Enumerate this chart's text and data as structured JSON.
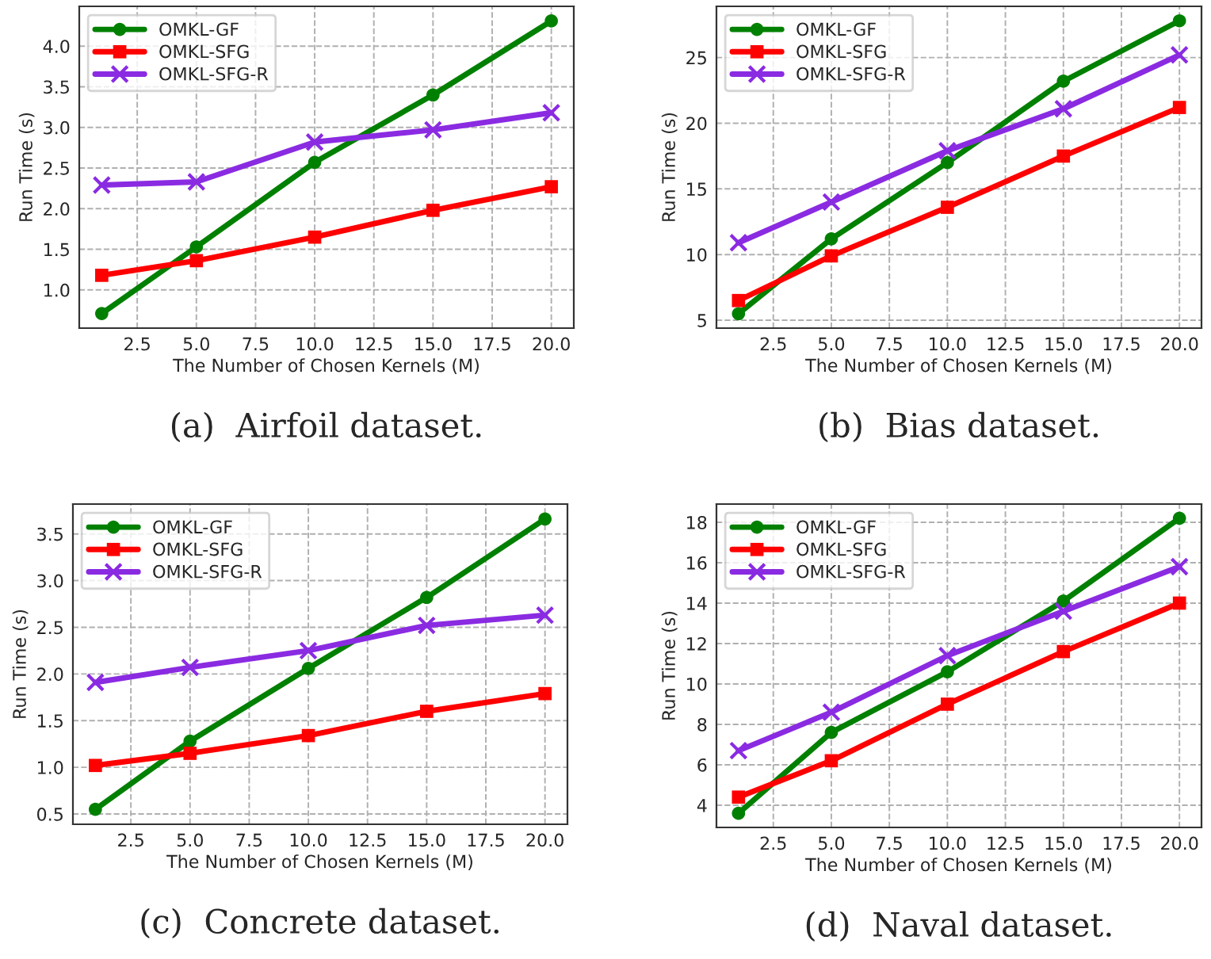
{
  "chart_data": [
    {
      "type": "line",
      "xlabel": "The Number of Chosen Kernels (M)",
      "ylabel": "Run Time (s)",
      "annotations": [
        "(a)  Airfoil dataset."
      ],
      "x": [
        1,
        5,
        10,
        15,
        20
      ],
      "xlim": [
        0.05,
        20.95
      ],
      "xticks": [
        {
          "value": 2.5,
          "label": "2.5"
        },
        {
          "value": 5,
          "label": "5.0"
        },
        {
          "value": 7.5,
          "label": "7.5"
        },
        {
          "value": 10,
          "label": "10.0"
        },
        {
          "value": 12.5,
          "label": "12.5"
        },
        {
          "value": 15,
          "label": "15.0"
        },
        {
          "value": 17.5,
          "label": "17.5"
        },
        {
          "value": 20,
          "label": "20.0"
        }
      ],
      "ylim": [
        0.53,
        4.49
      ],
      "yticks": [
        {
          "value": 1,
          "label": "1.0"
        },
        {
          "value": 1.5,
          "label": "1.5"
        },
        {
          "value": 2,
          "label": "2.0"
        },
        {
          "value": 2.5,
          "label": "2.5"
        },
        {
          "value": 3,
          "label": "3.0"
        },
        {
          "value": 3.5,
          "label": "3.5"
        },
        {
          "value": 4,
          "label": "4.0"
        }
      ],
      "grid": true,
      "legend": "top left",
      "series": [
        {
          "name": "OMKL-GF",
          "color": "#008000",
          "marker": "circle",
          "values": [
            0.71,
            1.53,
            2.57,
            3.4,
            4.31
          ]
        },
        {
          "name": "OMKL-SFG",
          "color": "#ff0000",
          "marker": "square",
          "values": [
            1.18,
            1.36,
            1.65,
            1.98,
            2.27
          ]
        },
        {
          "name": "OMKL-SFG-R",
          "color": "#8a2be2",
          "marker": "cross",
          "values": [
            2.29,
            2.33,
            2.82,
            2.97,
            3.18
          ]
        }
      ]
    },
    {
      "type": "line",
      "xlabel": "The Number of Chosen Kernels (M)",
      "ylabel": "Run Time (s)",
      "annotations": [
        "(b)  Bias dataset."
      ],
      "x": [
        1,
        5,
        10,
        15,
        20
      ],
      "xlim": [
        0.05,
        20.95
      ],
      "xticks": [
        {
          "value": 2.5,
          "label": "2.5"
        },
        {
          "value": 5,
          "label": "5.0"
        },
        {
          "value": 7.5,
          "label": "7.5"
        },
        {
          "value": 10,
          "label": "10.0"
        },
        {
          "value": 12.5,
          "label": "12.5"
        },
        {
          "value": 15,
          "label": "15.0"
        },
        {
          "value": 17.5,
          "label": "17.5"
        },
        {
          "value": 20,
          "label": "20.0"
        }
      ],
      "ylim": [
        4.4,
        28.9
      ],
      "yticks": [
        5,
        10,
        15,
        20,
        25
      ],
      "grid": true,
      "legend": "top left",
      "series": [
        {
          "name": "OMKL-GF",
          "color": "#008000",
          "marker": "circle",
          "values": [
            5.5,
            11.2,
            17.0,
            23.2,
            27.8
          ]
        },
        {
          "name": "OMKL-SFG",
          "color": "#ff0000",
          "marker": "square",
          "values": [
            6.5,
            9.9,
            13.6,
            17.5,
            21.2
          ]
        },
        {
          "name": "OMKL-SFG-R",
          "color": "#8a2be2",
          "marker": "cross",
          "values": [
            10.9,
            14.0,
            17.9,
            21.1,
            25.2
          ]
        }
      ]
    },
    {
      "type": "line",
      "xlabel": "The Number of Chosen Kernels (M)",
      "ylabel": "Run Time (s)",
      "annotations": [
        "(c)  Concrete dataset."
      ],
      "x": [
        1,
        5,
        10,
        15,
        20
      ],
      "xlim": [
        0.05,
        20.95
      ],
      "xticks": [
        {
          "value": 2.5,
          "label": "2.5"
        },
        {
          "value": 5,
          "label": "5.0"
        },
        {
          "value": 7.5,
          "label": "7.5"
        },
        {
          "value": 10,
          "label": "10.0"
        },
        {
          "value": 12.5,
          "label": "12.5"
        },
        {
          "value": 15,
          "label": "15.0"
        },
        {
          "value": 17.5,
          "label": "17.5"
        },
        {
          "value": 20,
          "label": "20.0"
        }
      ],
      "ylim": [
        0.39,
        3.82
      ],
      "yticks": [
        {
          "value": 0.5,
          "label": "0.5"
        },
        {
          "value": 1,
          "label": "1.0"
        },
        {
          "value": 1.5,
          "label": "1.5"
        },
        {
          "value": 2,
          "label": "2.0"
        },
        {
          "value": 2.5,
          "label": "2.5"
        },
        {
          "value": 3,
          "label": "3.0"
        },
        {
          "value": 3.5,
          "label": "3.5"
        }
      ],
      "grid": true,
      "legend": "top left",
      "series": [
        {
          "name": "OMKL-GF",
          "color": "#008000",
          "marker": "circle",
          "values": [
            0.55,
            1.28,
            2.06,
            2.82,
            3.66
          ]
        },
        {
          "name": "OMKL-SFG",
          "color": "#ff0000",
          "marker": "square",
          "values": [
            1.02,
            1.15,
            1.34,
            1.6,
            1.79
          ]
        },
        {
          "name": "OMKL-SFG-R",
          "color": "#8a2be2",
          "marker": "cross",
          "values": [
            1.91,
            2.07,
            2.25,
            2.52,
            2.63
          ]
        }
      ]
    },
    {
      "type": "line",
      "xlabel": "The Number of Chosen Kernels (M)",
      "ylabel": "Run Time (s)",
      "annotations": [
        "(d)  Naval dataset."
      ],
      "x": [
        1,
        5,
        10,
        15,
        20
      ],
      "xlim": [
        0.05,
        20.95
      ],
      "xticks": [
        {
          "value": 2.5,
          "label": "2.5"
        },
        {
          "value": 5,
          "label": "5.0"
        },
        {
          "value": 7.5,
          "label": "7.5"
        },
        {
          "value": 10,
          "label": "10.0"
        },
        {
          "value": 12.5,
          "label": "12.5"
        },
        {
          "value": 15,
          "label": "15.0"
        },
        {
          "value": 17.5,
          "label": "17.5"
        },
        {
          "value": 20,
          "label": "20.0"
        }
      ],
      "ylim": [
        2.9,
        18.9
      ],
      "yticks": [
        4,
        6,
        8,
        10,
        12,
        14,
        16,
        18
      ],
      "grid": true,
      "legend": "top left",
      "series": [
        {
          "name": "OMKL-GF",
          "color": "#008000",
          "marker": "circle",
          "values": [
            3.6,
            7.6,
            10.6,
            14.1,
            18.2
          ]
        },
        {
          "name": "OMKL-SFG",
          "color": "#ff0000",
          "marker": "square",
          "values": [
            4.4,
            6.2,
            9.0,
            11.6,
            14.0
          ]
        },
        {
          "name": "OMKL-SFG-R",
          "color": "#8a2be2",
          "marker": "cross",
          "values": [
            6.7,
            8.6,
            11.4,
            13.6,
            15.8
          ]
        }
      ]
    }
  ]
}
